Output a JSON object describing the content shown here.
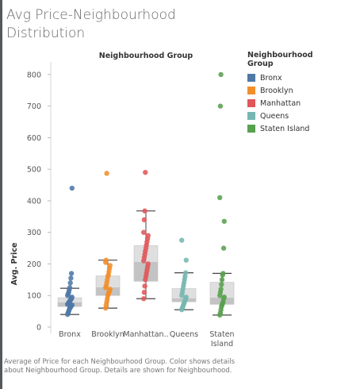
{
  "title": "Avg Price-Neighbourhood Distribution",
  "footnote": "Average of Price for each Neighbourhood Group.  Color shows details about Neighbourhood Group.  Details are shown for Neighbourhood.",
  "legend": {
    "title": "Neighbourhood Group",
    "items": [
      {
        "label": "Bronx",
        "color": "#4e79a7"
      },
      {
        "label": "Brooklyn",
        "color": "#f28e2b"
      },
      {
        "label": "Manhattan",
        "color": "#e15759"
      },
      {
        "label": "Queens",
        "color": "#76b7b2"
      },
      {
        "label": "Staten Island",
        "color": "#59a14f"
      }
    ]
  },
  "chart_data": {
    "type": "scatter",
    "subtype": "box-and-whisker with jittered points",
    "header": "Neighbourhood Group",
    "ylabel": "Avg. Price",
    "xlabel": "",
    "ylim": [
      0,
      840
    ],
    "yticks": [
      0,
      100,
      200,
      300,
      400,
      500,
      600,
      700,
      800
    ],
    "grid": false,
    "legend_position": "right",
    "categories": [
      {
        "name": "Bronx",
        "tick": [
          "Bronx"
        ],
        "color": "#4e79a7",
        "whisker_low": 40,
        "q1": 65,
        "median": 77,
        "q3": 93,
        "whisker_high": 123,
        "points": [
          40,
          45,
          50,
          55,
          60,
          62,
          65,
          68,
          70,
          72,
          75,
          77,
          80,
          82,
          85,
          88,
          90,
          95,
          100,
          105,
          110,
          118,
          125,
          140,
          155,
          170,
          440
        ]
      },
      {
        "name": "Brooklyn",
        "tick": [
          "Brooklyn"
        ],
        "color": "#f28e2b",
        "whisker_low": 60,
        "q1": 100,
        "median": 125,
        "q3": 162,
        "whisker_high": 212,
        "points": [
          60,
          70,
          80,
          90,
          100,
          105,
          110,
          115,
          120,
          125,
          130,
          140,
          150,
          160,
          165,
          175,
          185,
          195,
          205,
          212,
          487
        ]
      },
      {
        "name": "Manhattan",
        "tick": [
          "Manhattan.."
        ],
        "color": "#e15759",
        "whisker_low": 90,
        "q1": 145,
        "median": 205,
        "q3": 258,
        "whisker_high": 368,
        "points": [
          90,
          110,
          130,
          150,
          160,
          170,
          180,
          190,
          200,
          210,
          220,
          230,
          240,
          250,
          260,
          270,
          280,
          290,
          300,
          340,
          368,
          490
        ]
      },
      {
        "name": "Queens",
        "tick": [
          "Queens"
        ],
        "color": "#76b7b2",
        "whisker_low": 55,
        "q1": 80,
        "median": 90,
        "q3": 122,
        "whisker_high": 172,
        "points": [
          55,
          60,
          65,
          70,
          75,
          80,
          85,
          90,
          95,
          100,
          110,
          120,
          130,
          140,
          150,
          160,
          172,
          212,
          275
        ]
      },
      {
        "name": "Staten Island",
        "tick": [
          "Staten",
          "Island"
        ],
        "color": "#59a14f",
        "whisker_low": 38,
        "q1": 72,
        "median": 92,
        "q3": 142,
        "whisker_high": 170,
        "points": [
          38,
          45,
          55,
          65,
          70,
          75,
          80,
          90,
          95,
          100,
          110,
          120,
          135,
          150,
          165,
          170,
          250,
          335,
          410,
          700,
          800
        ]
      }
    ]
  }
}
